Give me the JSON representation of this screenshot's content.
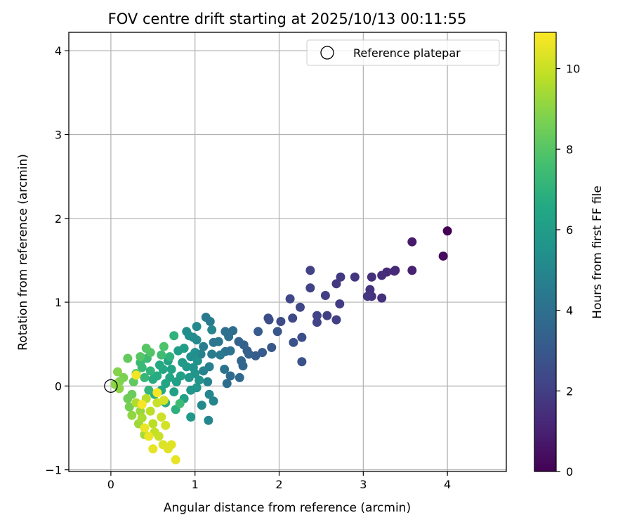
{
  "chart_data": {
    "type": "scatter",
    "title": "FOV centre drift starting at 2025/10/13 00:11:55",
    "xlabel": "Angular distance from reference (arcmin)",
    "ylabel": "Rotation from reference (arcmin)",
    "xlim": [
      -0.5,
      4.7
    ],
    "ylim": [
      -1.02,
      4.22
    ],
    "xticks": [
      0,
      1,
      2,
      3,
      4
    ],
    "yticks": [
      -1,
      0,
      1,
      2,
      3,
      4
    ],
    "grid": true,
    "legend": {
      "placement": "top-right",
      "entries": [
        "Reference platepar"
      ]
    },
    "reference_point": {
      "label": "Reference platepar",
      "x": 0,
      "y": 0
    },
    "colorbar": {
      "label": "Hours from first FF file",
      "range": [
        0,
        10.9
      ],
      "ticks": [
        0,
        2,
        4,
        6,
        8,
        10
      ],
      "colormap": "viridis"
    },
    "series": [
      {
        "points": [
          {
            "x": 4.0,
            "y": 1.85,
            "t": 0.0
          },
          {
            "x": 3.95,
            "y": 1.55,
            "t": 0.3
          },
          {
            "x": 3.58,
            "y": 1.72,
            "t": 0.8
          },
          {
            "x": 3.58,
            "y": 1.38,
            "t": 1.0
          },
          {
            "x": 3.38,
            "y": 1.38,
            "t": 1.2
          },
          {
            "x": 3.37,
            "y": 1.37,
            "t": 1.3
          },
          {
            "x": 3.28,
            "y": 1.36,
            "t": 1.3
          },
          {
            "x": 3.22,
            "y": 1.32,
            "t": 1.4
          },
          {
            "x": 3.22,
            "y": 1.05,
            "t": 1.5
          },
          {
            "x": 3.1,
            "y": 1.3,
            "t": 1.5
          },
          {
            "x": 3.1,
            "y": 1.07,
            "t": 1.6
          },
          {
            "x": 3.08,
            "y": 1.15,
            "t": 1.6
          },
          {
            "x": 3.05,
            "y": 1.07,
            "t": 1.7
          },
          {
            "x": 2.9,
            "y": 1.3,
            "t": 1.7
          },
          {
            "x": 2.73,
            "y": 1.3,
            "t": 1.8
          },
          {
            "x": 2.68,
            "y": 1.22,
            "t": 1.8
          },
          {
            "x": 2.72,
            "y": 0.98,
            "t": 1.9
          },
          {
            "x": 2.68,
            "y": 0.79,
            "t": 2.0
          },
          {
            "x": 2.57,
            "y": 0.84,
            "t": 2.0
          },
          {
            "x": 2.55,
            "y": 1.08,
            "t": 2.0
          },
          {
            "x": 2.37,
            "y": 1.38,
            "t": 2.1
          },
          {
            "x": 2.37,
            "y": 1.17,
            "t": 2.1
          },
          {
            "x": 2.45,
            "y": 0.84,
            "t": 2.2
          },
          {
            "x": 2.45,
            "y": 0.76,
            "t": 2.2
          },
          {
            "x": 2.25,
            "y": 0.94,
            "t": 2.3
          },
          {
            "x": 2.13,
            "y": 1.04,
            "t": 2.3
          },
          {
            "x": 2.16,
            "y": 0.81,
            "t": 2.4
          },
          {
            "x": 2.02,
            "y": 0.77,
            "t": 2.5
          },
          {
            "x": 1.87,
            "y": 0.81,
            "t": 2.5
          },
          {
            "x": 1.88,
            "y": 0.79,
            "t": 2.6
          },
          {
            "x": 2.27,
            "y": 0.58,
            "t": 2.6
          },
          {
            "x": 2.17,
            "y": 0.52,
            "t": 2.7
          },
          {
            "x": 2.27,
            "y": 0.29,
            "t": 2.7
          },
          {
            "x": 1.98,
            "y": 0.65,
            "t": 2.9
          },
          {
            "x": 1.91,
            "y": 0.46,
            "t": 3.0
          },
          {
            "x": 1.8,
            "y": 0.4,
            "t": 3.1
          },
          {
            "x": 1.75,
            "y": 0.65,
            "t": 3.1
          },
          {
            "x": 1.72,
            "y": 0.36,
            "t": 3.2
          },
          {
            "x": 1.62,
            "y": 0.42,
            "t": 3.3
          },
          {
            "x": 1.64,
            "y": 0.38,
            "t": 3.4
          },
          {
            "x": 1.58,
            "y": 0.49,
            "t": 3.4
          },
          {
            "x": 1.52,
            "y": 0.53,
            "t": 3.5
          },
          {
            "x": 1.55,
            "y": 0.3,
            "t": 3.6
          },
          {
            "x": 1.57,
            "y": 0.24,
            "t": 3.6
          },
          {
            "x": 1.53,
            "y": 0.1,
            "t": 3.7
          },
          {
            "x": 1.42,
            "y": 0.12,
            "t": 3.8
          },
          {
            "x": 1.38,
            "y": 0.03,
            "t": 3.9
          },
          {
            "x": 1.45,
            "y": 0.66,
            "t": 3.9
          },
          {
            "x": 1.4,
            "y": 0.59,
            "t": 4.0
          },
          {
            "x": 1.36,
            "y": 0.65,
            "t": 4.0
          },
          {
            "x": 1.42,
            "y": 0.42,
            "t": 4.1
          },
          {
            "x": 1.36,
            "y": 0.41,
            "t": 4.1
          },
          {
            "x": 1.35,
            "y": 0.2,
            "t": 4.2
          },
          {
            "x": 1.28,
            "y": 0.53,
            "t": 4.3
          },
          {
            "x": 1.22,
            "y": 0.52,
            "t": 4.3
          },
          {
            "x": 1.3,
            "y": 0.37,
            "t": 4.4
          },
          {
            "x": 1.2,
            "y": 0.38,
            "t": 4.5
          },
          {
            "x": 1.13,
            "y": 0.82,
            "t": 4.4
          },
          {
            "x": 1.18,
            "y": 0.77,
            "t": 4.5
          },
          {
            "x": 1.2,
            "y": 0.67,
            "t": 5.0
          },
          {
            "x": 1.1,
            "y": 0.47,
            "t": 4.6
          },
          {
            "x": 1.07,
            "y": 0.38,
            "t": 4.7
          },
          {
            "x": 1.17,
            "y": 0.23,
            "t": 4.7
          },
          {
            "x": 1.1,
            "y": 0.18,
            "t": 4.8
          },
          {
            "x": 1.15,
            "y": 0.05,
            "t": 4.8
          },
          {
            "x": 1.22,
            "y": -0.18,
            "t": 4.9
          },
          {
            "x": 1.17,
            "y": -0.1,
            "t": 5.0
          },
          {
            "x": 1.16,
            "y": -0.41,
            "t": 5.0
          },
          {
            "x": 1.08,
            "y": -0.23,
            "t": 5.1
          },
          {
            "x": 1.02,
            "y": 0.71,
            "t": 5.1
          },
          {
            "x": 1.02,
            "y": 0.55,
            "t": 5.2
          },
          {
            "x": 0.98,
            "y": 0.58,
            "t": 5.2
          },
          {
            "x": 0.93,
            "y": 0.6,
            "t": 5.3
          },
          {
            "x": 0.9,
            "y": 0.65,
            "t": 5.3
          },
          {
            "x": 1.0,
            "y": 0.4,
            "t": 5.4
          },
          {
            "x": 0.95,
            "y": 0.35,
            "t": 5.4
          },
          {
            "x": 1.03,
            "y": 0.3,
            "t": 5.5
          },
          {
            "x": 0.98,
            "y": 0.22,
            "t": 5.5
          },
          {
            "x": 1.0,
            "y": 0.15,
            "t": 5.6
          },
          {
            "x": 1.05,
            "y": 0.07,
            "t": 5.6
          },
          {
            "x": 1.02,
            "y": -0.02,
            "t": 5.7
          },
          {
            "x": 0.95,
            "y": -0.05,
            "t": 5.7
          },
          {
            "x": 0.93,
            "y": 0.1,
            "t": 5.8
          },
          {
            "x": 0.9,
            "y": 0.23,
            "t": 5.8
          },
          {
            "x": 0.85,
            "y": 0.28,
            "t": 5.9
          },
          {
            "x": 0.87,
            "y": 0.45,
            "t": 6.0
          },
          {
            "x": 0.8,
            "y": 0.42,
            "t": 6.0
          },
          {
            "x": 0.83,
            "y": 0.12,
            "t": 6.1
          },
          {
            "x": 0.78,
            "y": 0.05,
            "t": 6.1
          },
          {
            "x": 0.87,
            "y": -0.15,
            "t": 6.2
          },
          {
            "x": 0.95,
            "y": -0.37,
            "t": 5.8
          },
          {
            "x": 0.75,
            "y": -0.07,
            "t": 6.2
          },
          {
            "x": 0.72,
            "y": 0.2,
            "t": 6.3
          },
          {
            "x": 0.68,
            "y": 0.3,
            "t": 6.3
          },
          {
            "x": 0.7,
            "y": 0.1,
            "t": 6.4
          },
          {
            "x": 0.65,
            "y": 0.03,
            "t": 6.4
          },
          {
            "x": 0.6,
            "y": -0.05,
            "t": 6.5
          },
          {
            "x": 0.62,
            "y": 0.2,
            "t": 6.5
          },
          {
            "x": 0.58,
            "y": 0.25,
            "t": 6.6
          },
          {
            "x": 0.55,
            "y": 0.12,
            "t": 6.7
          },
          {
            "x": 0.5,
            "y": 0.08,
            "t": 6.7
          },
          {
            "x": 0.52,
            "y": -0.1,
            "t": 6.8
          },
          {
            "x": 0.65,
            "y": -0.2,
            "t": 6.8
          },
          {
            "x": 0.77,
            "y": -0.28,
            "t": 6.9
          },
          {
            "x": 0.75,
            "y": 0.6,
            "t": 7.0
          },
          {
            "x": 0.7,
            "y": 0.35,
            "t": 7.0
          },
          {
            "x": 0.47,
            "y": 0.18,
            "t": 7.1
          },
          {
            "x": 0.45,
            "y": -0.05,
            "t": 7.1
          },
          {
            "x": 0.4,
            "y": 0.1,
            "t": 7.2
          },
          {
            "x": 0.37,
            "y": 0.22,
            "t": 7.3
          },
          {
            "x": 0.35,
            "y": 0.28,
            "t": 7.3
          },
          {
            "x": 0.43,
            "y": 0.33,
            "t": 7.4
          },
          {
            "x": 0.82,
            "y": -0.21,
            "t": 7.4
          },
          {
            "x": 0.6,
            "y": 0.37,
            "t": 7.5
          },
          {
            "x": 0.63,
            "y": 0.47,
            "t": 7.8
          },
          {
            "x": 0.47,
            "y": 0.4,
            "t": 7.9
          },
          {
            "x": 0.42,
            "y": 0.45,
            "t": 8.0
          },
          {
            "x": 0.35,
            "y": 0.35,
            "t": 8.0
          },
          {
            "x": 0.3,
            "y": 0.15,
            "t": 8.1
          },
          {
            "x": 0.27,
            "y": 0.05,
            "t": 8.2
          },
          {
            "x": 0.2,
            "y": 0.33,
            "t": 8.3
          },
          {
            "x": 0.25,
            "y": -0.1,
            "t": 8.4
          },
          {
            "x": 0.2,
            "y": -0.15,
            "t": 8.5
          },
          {
            "x": 0.22,
            "y": -0.25,
            "t": 8.6
          },
          {
            "x": 0.15,
            "y": 0.1,
            "t": 8.7
          },
          {
            "x": 0.1,
            "y": 0.05,
            "t": 8.8
          },
          {
            "x": 0.08,
            "y": 0.17,
            "t": 8.9
          },
          {
            "x": 0.05,
            "y": 0.02,
            "t": 9.0
          },
          {
            "x": 0.1,
            "y": -0.03,
            "t": 9.0
          },
          {
            "x": 0.25,
            "y": -0.35,
            "t": 9.1
          },
          {
            "x": 0.35,
            "y": -0.3,
            "t": 9.2
          },
          {
            "x": 0.33,
            "y": -0.45,
            "t": 9.3
          },
          {
            "x": 0.4,
            "y": -0.58,
            "t": 9.4
          },
          {
            "x": 0.37,
            "y": -0.38,
            "t": 9.5
          },
          {
            "x": 0.3,
            "y": -0.2,
            "t": 9.6
          },
          {
            "x": 0.42,
            "y": -0.15,
            "t": 9.7
          },
          {
            "x": 0.47,
            "y": -0.3,
            "t": 9.8
          },
          {
            "x": 0.5,
            "y": -0.45,
            "t": 9.8
          },
          {
            "x": 0.52,
            "y": -0.55,
            "t": 9.9
          },
          {
            "x": 0.57,
            "y": -0.6,
            "t": 10.0
          },
          {
            "x": 0.55,
            "y": -0.2,
            "t": 10.0
          },
          {
            "x": 0.6,
            "y": -0.37,
            "t": 10.1
          },
          {
            "x": 0.63,
            "y": -0.17,
            "t": 10.2
          },
          {
            "x": 0.65,
            "y": -0.47,
            "t": 10.2
          },
          {
            "x": 0.62,
            "y": -0.7,
            "t": 10.3
          },
          {
            "x": 0.68,
            "y": -0.75,
            "t": 10.4
          },
          {
            "x": 0.72,
            "y": -0.7,
            "t": 10.4
          },
          {
            "x": 0.77,
            "y": -0.88,
            "t": 10.5
          },
          {
            "x": 0.5,
            "y": -0.75,
            "t": 10.5
          },
          {
            "x": 0.45,
            "y": -0.6,
            "t": 10.6
          },
          {
            "x": 0.3,
            "y": 0.13,
            "t": 10.7
          },
          {
            "x": 0.37,
            "y": -0.22,
            "t": 10.8
          },
          {
            "x": 0.55,
            "y": -0.08,
            "t": 10.8
          },
          {
            "x": 0.4,
            "y": -0.5,
            "t": 10.6
          }
        ]
      }
    ]
  }
}
